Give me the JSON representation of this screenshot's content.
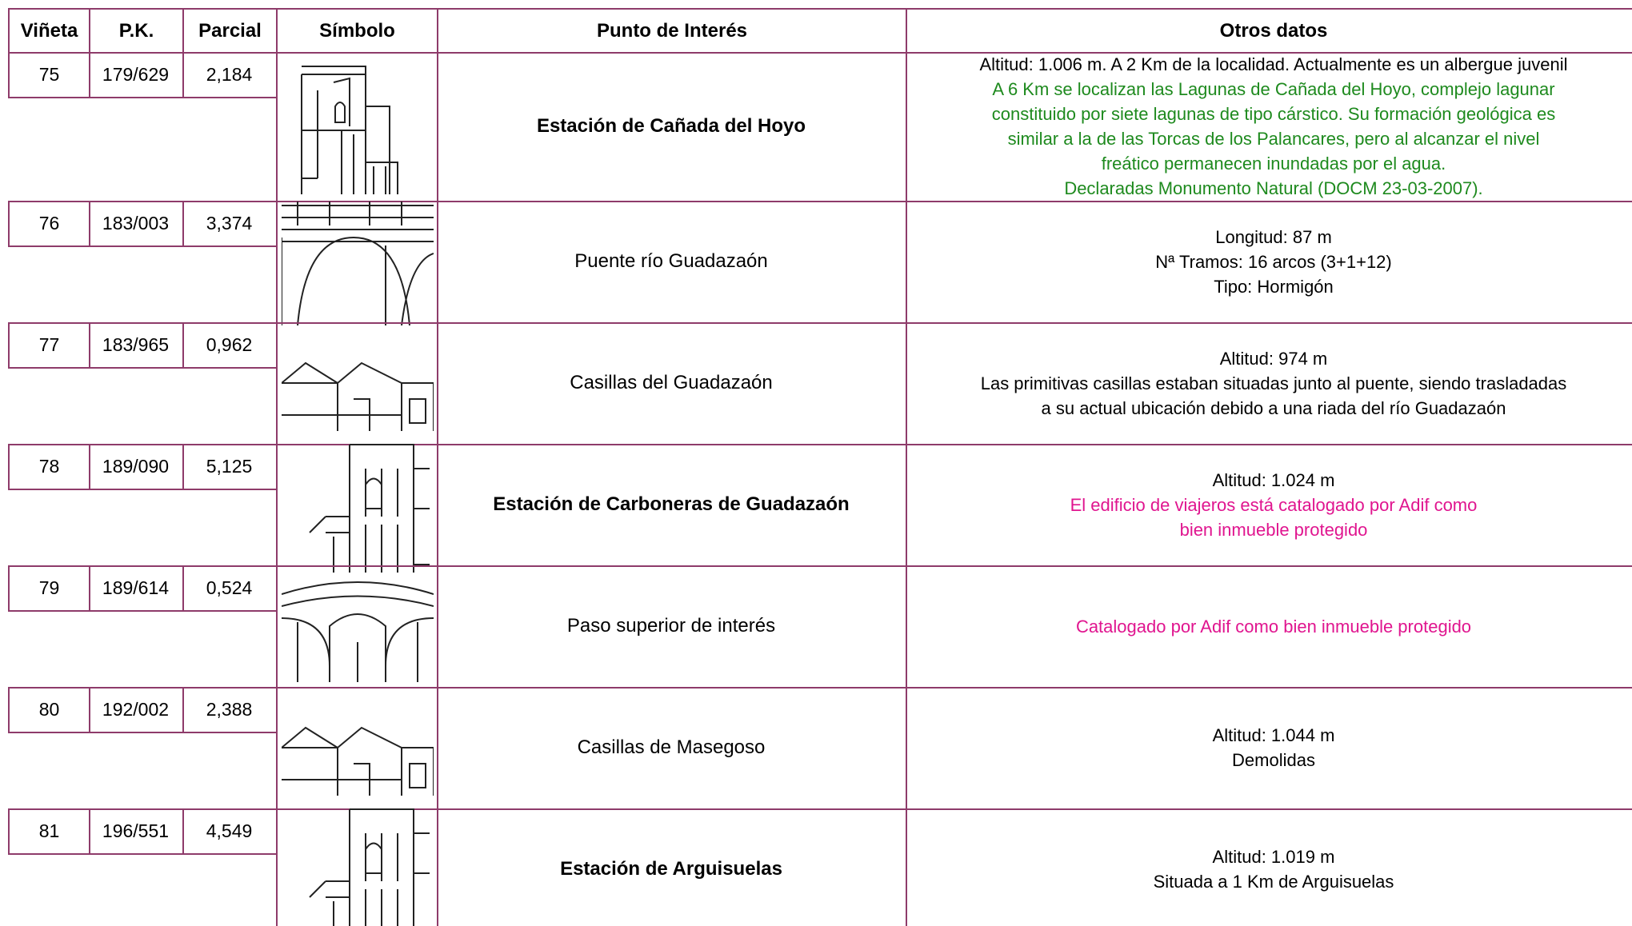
{
  "table": {
    "header": [
      "Viñeta",
      "P.K.",
      "Parcial",
      "Símbolo",
      "Punto de Interés",
      "Otros datos"
    ],
    "rows": [
      {
        "vineta": "75",
        "pk": "179/629",
        "parcial": "2,184",
        "punto": "Estación de Cañada del Hoyo",
        "bold": true,
        "otros": [
          {
            "text": "Altitud: 1.006 m. A 2 Km de la localidad. Actualmente es un albergue juvenil",
            "color": "#000000"
          },
          {
            "text": "A 6 Km se localizan las Lagunas de Cañada del Hoyo, complejo lagunar",
            "color": "#1e8a1e"
          },
          {
            "text": "constituido por siete lagunas de tipo cárstico. Su formación geológica es",
            "color": "#1e8a1e"
          },
          {
            "text": "similar a la de las Torcas de los Palancares, pero al alcanzar el nivel",
            "color": "#1e8a1e"
          },
          {
            "text": "freático permanecen inundadas por el agua.",
            "color": "#1e8a1e"
          },
          {
            "text": "Declaradas Monumento Natural (DOCM 23-03-2007).",
            "color": "#1e8a1e"
          }
        ]
      },
      {
        "vineta": "76",
        "pk": "183/003",
        "parcial": "3,374",
        "punto": "Puente río Guadazaón",
        "bold": false,
        "otros": [
          {
            "text": "Longitud: 87 m",
            "color": "#000000"
          },
          {
            "text": "Nª Tramos: 16 arcos (3+1+12)",
            "color": "#000000"
          },
          {
            "text": "Tipo: Hormigón",
            "color": "#000000"
          }
        ]
      },
      {
        "vineta": "77",
        "pk": "183/965",
        "parcial": "0,962",
        "punto": "Casillas del Guadazaón",
        "bold": false,
        "otros": [
          {
            "text": "Altitud: 974 m",
            "color": "#000000"
          },
          {
            "text": "Las primitivas casillas estaban situadas junto al puente, siendo trasladadas",
            "color": "#000000"
          },
          {
            "text": "a su actual ubicación debido a una riada del río Guadazaón",
            "color": "#000000"
          }
        ]
      },
      {
        "vineta": "78",
        "pk": "189/090",
        "parcial": "5,125",
        "punto": "Estación de Carboneras de Guadazaón",
        "bold": true,
        "otros": [
          {
            "text": "Altitud: 1.024 m",
            "color": "#000000"
          },
          {
            "text": "El edificio de viajeros está catalogado por Adif como",
            "color": "#e0158f"
          },
          {
            "text": "bien inmueble protegido",
            "color": "#e0158f"
          }
        ]
      },
      {
        "vineta": "79",
        "pk": "189/614",
        "parcial": "0,524",
        "punto": "Paso superior de interés",
        "bold": false,
        "otros": [
          {
            "text": "Catalogado por Adif como bien inmueble protegido",
            "color": "#e0158f"
          }
        ]
      },
      {
        "vineta": "80",
        "pk": "192/002",
        "parcial": "2,388",
        "punto": "Casillas de Masegoso",
        "bold": false,
        "otros": [
          {
            "text": "Altitud: 1.044 m",
            "color": "#000000"
          },
          {
            "text": "Demolidas",
            "color": "#000000"
          }
        ]
      },
      {
        "vineta": "81",
        "pk": "196/551",
        "parcial": "4,549",
        "punto": "Estación de Arguisuelas",
        "bold": true,
        "otros": [
          {
            "text": "Altitud: 1.019 m",
            "color": "#000000"
          },
          {
            "text": "Situada a 1 Km de Arguisuelas",
            "color": "#000000"
          }
        ]
      }
    ]
  }
}
